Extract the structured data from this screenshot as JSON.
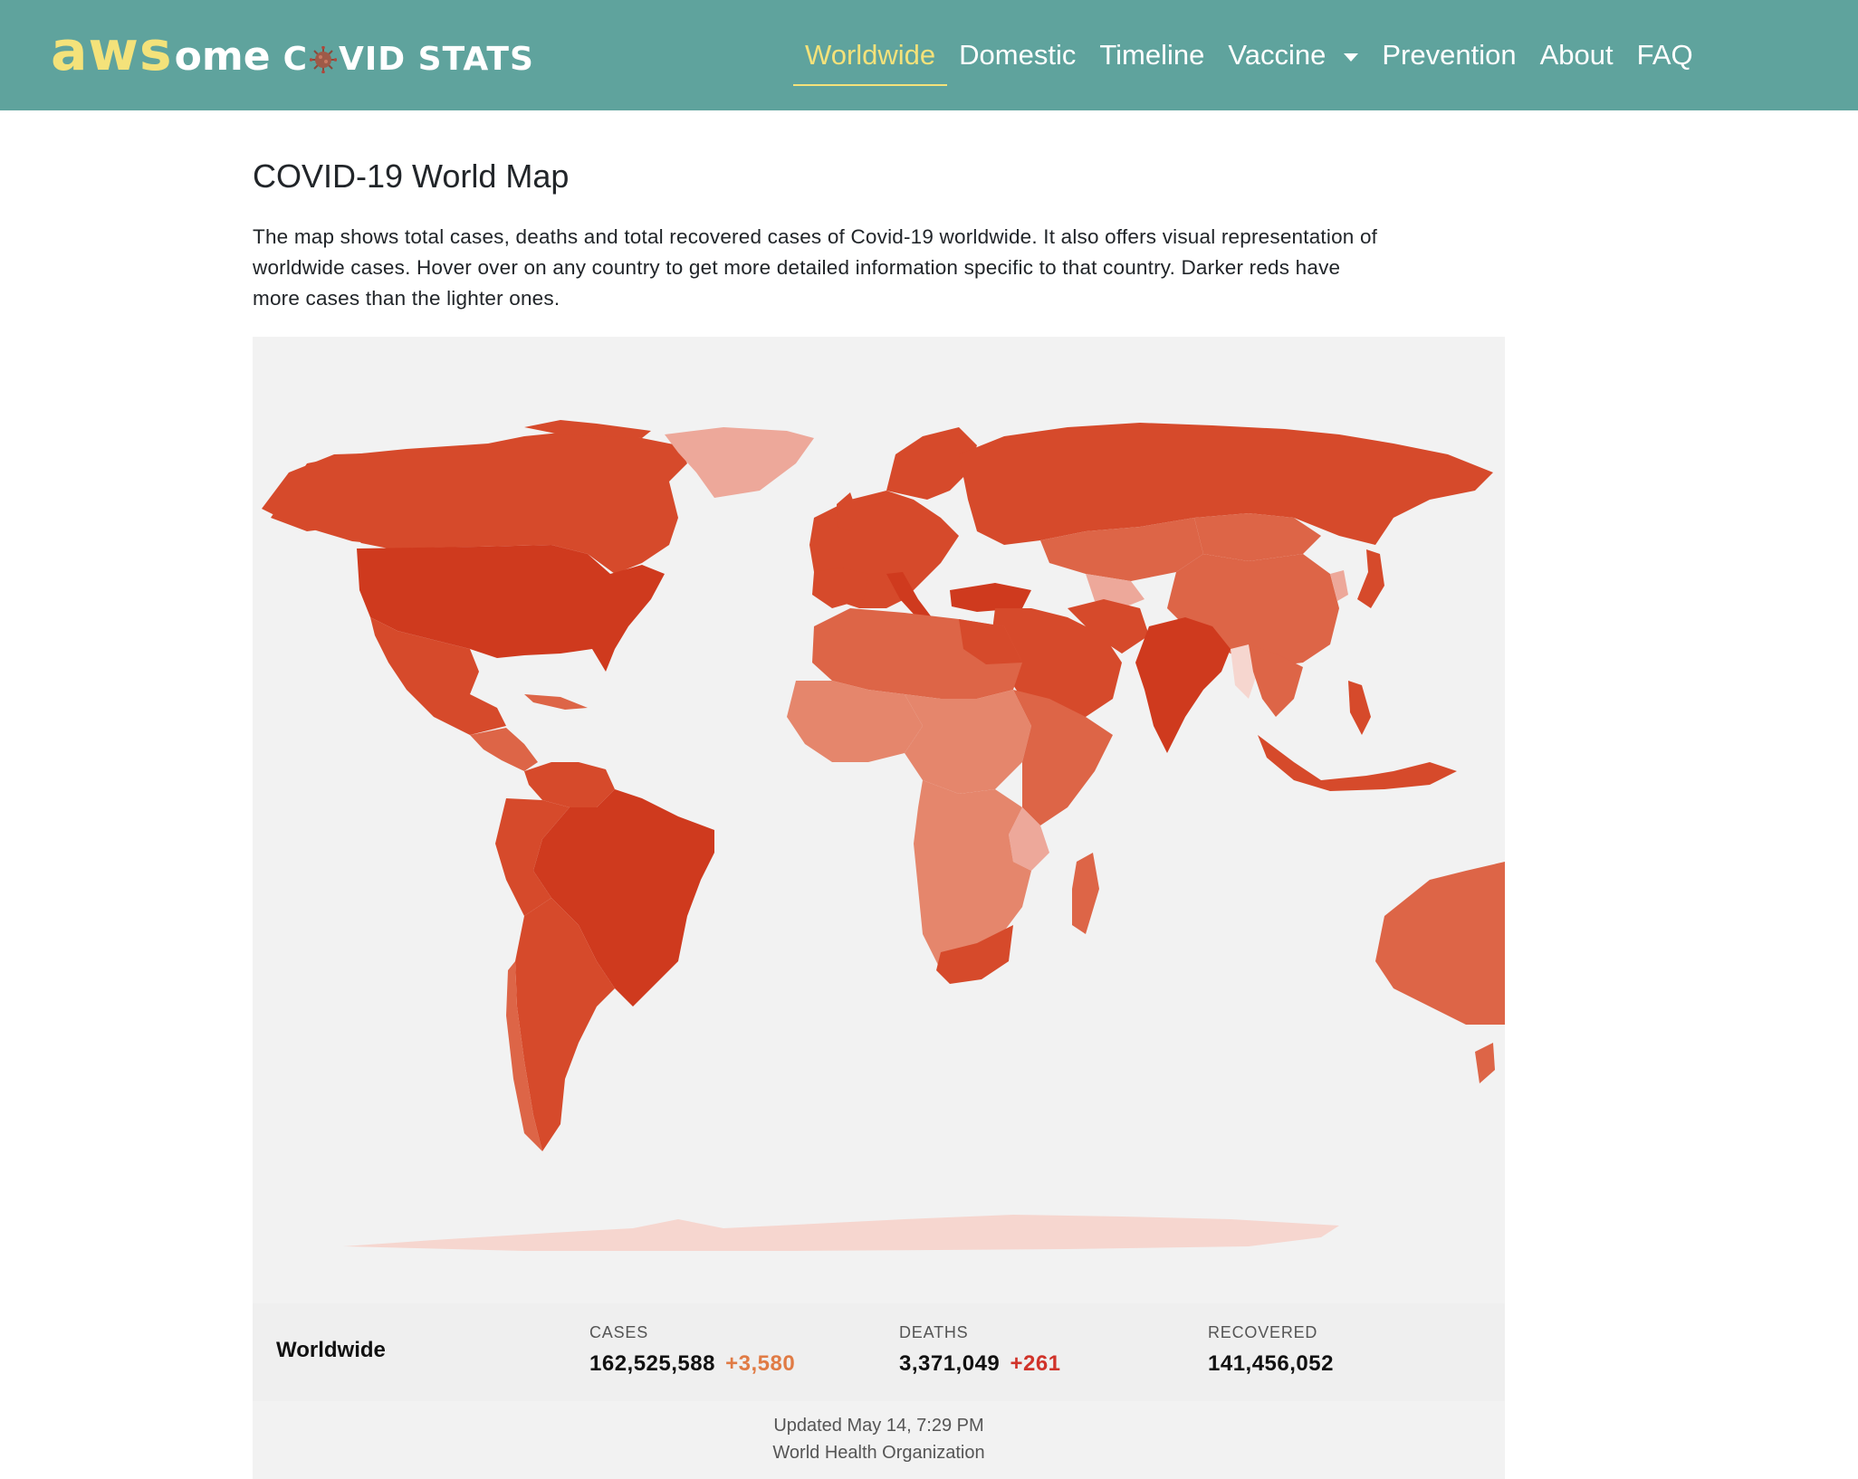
{
  "brand": {
    "part1": "aws",
    "part2": "ome",
    "part3_a": "C",
    "part3_b": "VID STATS"
  },
  "nav": {
    "items": [
      {
        "label": "Worldwide",
        "active": true
      },
      {
        "label": "Domestic"
      },
      {
        "label": "Timeline"
      },
      {
        "label": "Vaccine",
        "dropdown": true
      },
      {
        "label": "Prevention"
      },
      {
        "label": "About"
      },
      {
        "label": "FAQ"
      }
    ]
  },
  "page": {
    "title": "COVID-19 World Map",
    "intro": "The map shows total cases, deaths and total recovered cases of Covid-19 worldwide. It also offers visual representation of worldwide cases. Hover over on any country to get more detailed information specific to that country. Darker reds have more cases than the lighter ones."
  },
  "stats": {
    "region": "Worldwide",
    "cases_label": "CASES",
    "cases_value": "162,525,588",
    "cases_delta": "+3,580",
    "deaths_label": "DEATHS",
    "deaths_value": "3,371,049",
    "deaths_delta": "+261",
    "recovered_label": "RECOVERED",
    "recovered_value": "141,456,052"
  },
  "footer": {
    "updated": "Updated May 14, 7:29 PM",
    "source": "World Health Organization"
  },
  "colors": {
    "navbar": "#5fa39d",
    "accent": "#f4e27a",
    "darkest": "#cf3a1e",
    "dark": "#d64a2b",
    "mid": "#dd6547",
    "light": "#e5866c",
    "lighter": "#eda89a",
    "palest": "#f6d6cf",
    "ocean": "#f2f2f2"
  }
}
